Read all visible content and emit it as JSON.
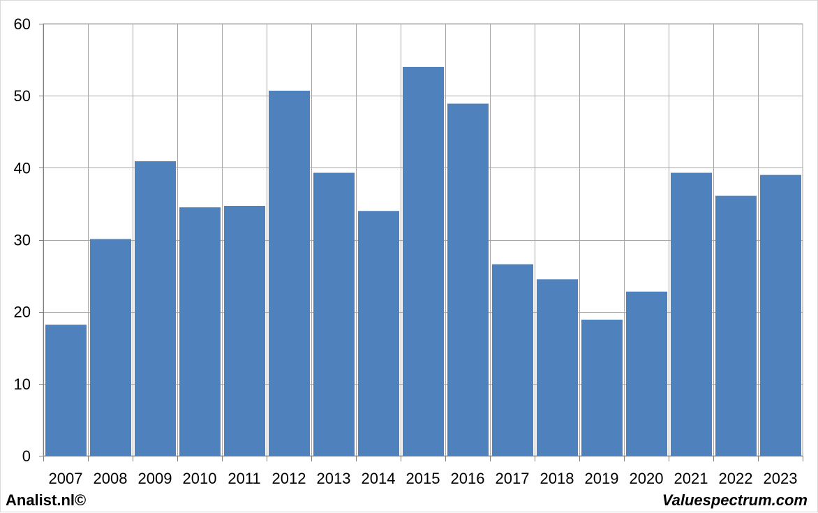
{
  "chart_data": {
    "type": "bar",
    "title": "",
    "xlabel": "",
    "ylabel": "",
    "categories": [
      "2007",
      "2008",
      "2009",
      "2010",
      "2011",
      "2012",
      "2013",
      "2014",
      "2015",
      "2016",
      "2017",
      "2018",
      "2019",
      "2020",
      "2021",
      "2022",
      "2023"
    ],
    "values": [
      18.2,
      30.1,
      40.9,
      34.5,
      34.7,
      50.7,
      39.3,
      34.0,
      54.0,
      48.9,
      26.6,
      24.5,
      18.9,
      22.8,
      39.3,
      36.1,
      39.0
    ],
    "ylim": [
      0,
      60
    ],
    "yticks": [
      0,
      10,
      20,
      30,
      40,
      50,
      60
    ],
    "grid": true,
    "legend": "none",
    "colors": {
      "bar": "#4f81bd",
      "grid": "#a6a6a6",
      "axis": "#7f7f7f"
    }
  },
  "footer": {
    "left": "Analist.nl©",
    "right": "Valuespectrum.com"
  }
}
